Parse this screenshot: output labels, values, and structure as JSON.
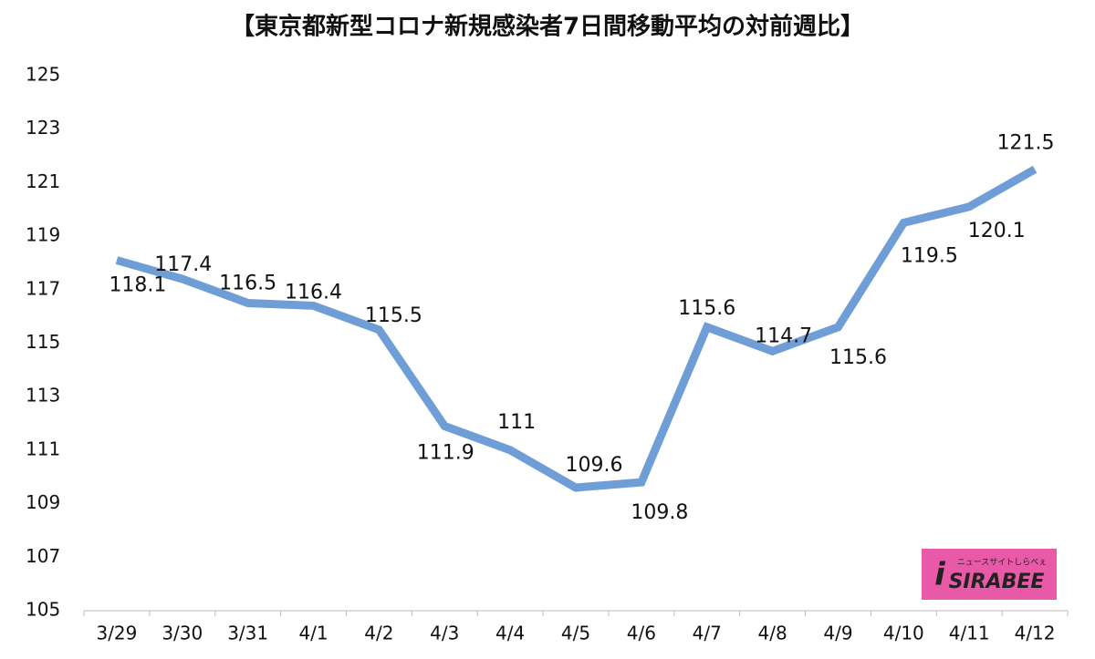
{
  "chart_data": {
    "type": "line",
    "title": "【東京都新型コロナ新規感染者7日間移動平均の対前週比】",
    "categories": [
      "3/29",
      "3/30",
      "3/31",
      "4/1",
      "4/2",
      "4/3",
      "4/4",
      "4/5",
      "4/6",
      "4/7",
      "4/8",
      "4/9",
      "4/10",
      "4/11",
      "4/12"
    ],
    "values": [
      118.1,
      117.4,
      116.5,
      116.4,
      115.5,
      111.9,
      111,
      109.6,
      109.8,
      115.6,
      114.7,
      115.6,
      119.5,
      120.1,
      121.5
    ],
    "color": "#6f9ed6",
    "ylim": [
      105,
      125
    ],
    "yticks": [
      105,
      107,
      109,
      111,
      113,
      115,
      117,
      119,
      121,
      123,
      125
    ],
    "grid": false
  },
  "logo": {
    "text": "SIRABEE",
    "tagline": "ニュースサイトしらべぇ"
  }
}
